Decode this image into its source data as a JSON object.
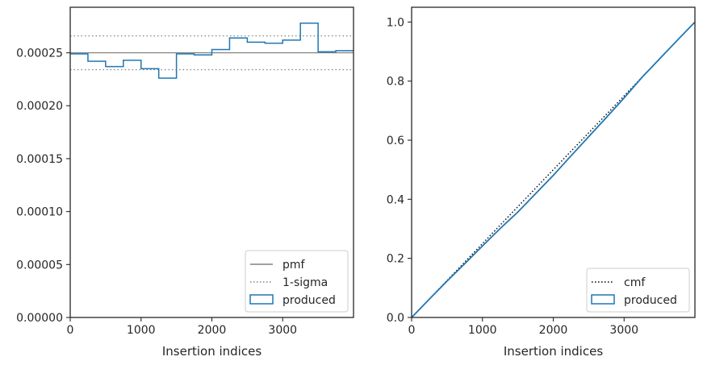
{
  "chart_data": [
    {
      "type": "histogram",
      "xlabel": "Insertion indices",
      "ylabel": "",
      "xlim": [
        0,
        4000
      ],
      "ylim": [
        0,
        0.000293
      ],
      "xticks": [
        0,
        1000,
        2000,
        3000
      ],
      "xtick_labels": [
        "0",
        "1000",
        "2000",
        "3000"
      ],
      "yticks": [
        0,
        5e-05,
        0.0001,
        0.00015,
        0.0002,
        0.00025
      ],
      "ytick_labels": [
        "0.00000",
        "0.00005",
        "0.00010",
        "0.00015",
        "0.00020",
        "0.00025"
      ],
      "reference_lines": [
        {
          "name": "pmf",
          "y": 0.00025,
          "style": "solid",
          "color": "#808080"
        },
        {
          "name": "1-sigma",
          "y": 0.000266,
          "style": "dotted",
          "color": "#808080"
        },
        {
          "name": "1-sigma",
          "y": 0.000234,
          "style": "dotted",
          "color": "#808080"
        }
      ],
      "series": [
        {
          "name": "produced",
          "color": "#1f77b4",
          "bin_edges": [
            0,
            250,
            500,
            750,
            1000,
            1250,
            1500,
            1750,
            2000,
            2250,
            2500,
            2750,
            3000,
            3250,
            3500,
            3750,
            4000
          ],
          "values": [
            0.000249,
            0.000242,
            0.000237,
            0.000243,
            0.000235,
            0.000226,
            0.000249,
            0.000248,
            0.000253,
            0.000264,
            0.00026,
            0.000259,
            0.000262,
            0.000278,
            0.000251,
            0.000252
          ]
        }
      ],
      "legend": {
        "position": "lower right",
        "entries": [
          {
            "label": "pmf",
            "kind": "line-solid",
            "color": "#808080"
          },
          {
            "label": "1-sigma",
            "kind": "line-dotted",
            "color": "#808080"
          },
          {
            "label": "produced",
            "kind": "box",
            "color": "#1f77b4"
          }
        ]
      }
    },
    {
      "type": "line",
      "xlabel": "Insertion indices",
      "ylabel": "",
      "xlim": [
        0,
        4000
      ],
      "ylim": [
        0,
        1.05
      ],
      "xticks": [
        0,
        1000,
        2000,
        3000
      ],
      "xtick_labels": [
        "0",
        "1000",
        "2000",
        "3000"
      ],
      "yticks": [
        0,
        0.2,
        0.4,
        0.6,
        0.8,
        1.0
      ],
      "ytick_labels": [
        "0.0",
        "0.2",
        "0.4",
        "0.6",
        "0.8",
        "1.0"
      ],
      "series": [
        {
          "name": "cmf",
          "style": "dotted",
          "color": "#000000",
          "x": [
            0,
            4000
          ],
          "y": [
            0,
            1.0
          ]
        },
        {
          "name": "produced",
          "style": "solid",
          "color": "#1f77b4",
          "x": [
            0,
            250,
            500,
            750,
            1000,
            1250,
            1500,
            1750,
            2000,
            2250,
            2500,
            2750,
            3000,
            3250,
            3500,
            3750,
            4000
          ],
          "y": [
            0,
            0.062,
            0.123,
            0.182,
            0.242,
            0.301,
            0.357,
            0.419,
            0.481,
            0.547,
            0.612,
            0.677,
            0.743,
            0.812,
            0.875,
            0.938,
            1.0
          ]
        }
      ],
      "legend": {
        "position": "lower right",
        "entries": [
          {
            "label": "cmf",
            "kind": "line-dotted",
            "color": "#000000"
          },
          {
            "label": "produced",
            "kind": "box",
            "color": "#1f77b4"
          }
        ]
      }
    }
  ]
}
